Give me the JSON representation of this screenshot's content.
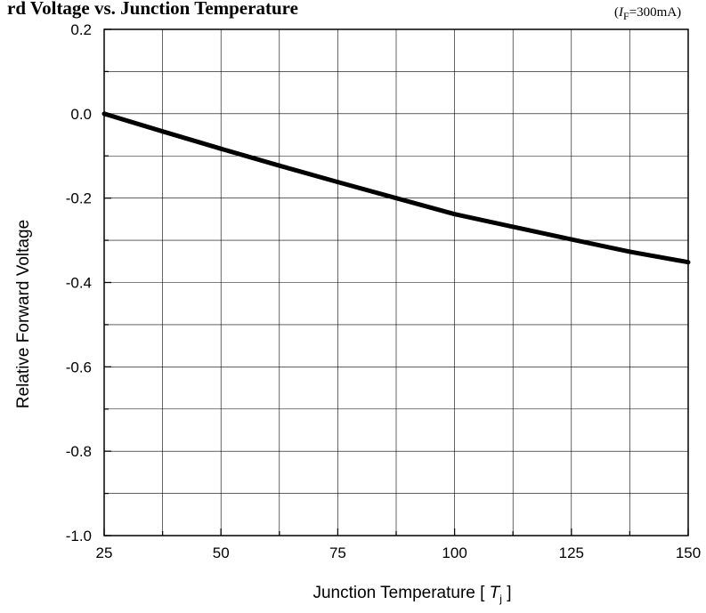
{
  "chart_data": {
    "type": "line",
    "title": "rd Voltage vs.  Junction Temperature",
    "condition": {
      "prefix": "(",
      "symbol": "I",
      "subscript": "F",
      "suffix": "=300mA)"
    },
    "xlabel": {
      "prefix": "Junction Temperature [ ",
      "symbol": "T",
      "subscript": "j",
      "suffix": " ]"
    },
    "ylabel": "Relative Forward Voltage",
    "xlim": [
      25,
      150
    ],
    "ylim": [
      -1.0,
      0.2
    ],
    "xticks": [
      25,
      50,
      75,
      100,
      125,
      150
    ],
    "xtick_labels": [
      "25",
      "50",
      "75",
      "100",
      "125",
      "150"
    ],
    "yticks": [
      0.2,
      0.0,
      -0.2,
      -0.4,
      -0.6,
      -0.8,
      -1.0
    ],
    "ytick_labels": [
      "0.2",
      "0.0",
      "-0.2",
      "-0.4",
      "-0.6",
      "-0.8",
      "-1.0"
    ],
    "x_grid_step": 12.5,
    "y_grid_step": 0.1,
    "grid": true,
    "series": [
      {
        "x": [
          25,
          37.5,
          50,
          62.5,
          75,
          87.5,
          100,
          112.5,
          125,
          137.5,
          150
        ],
        "values": [
          0.0,
          -0.042,
          -0.083,
          -0.123,
          -0.162,
          -0.2,
          -0.238,
          -0.268,
          -0.298,
          -0.327,
          -0.352
        ]
      }
    ],
    "line_color": "#000000"
  }
}
